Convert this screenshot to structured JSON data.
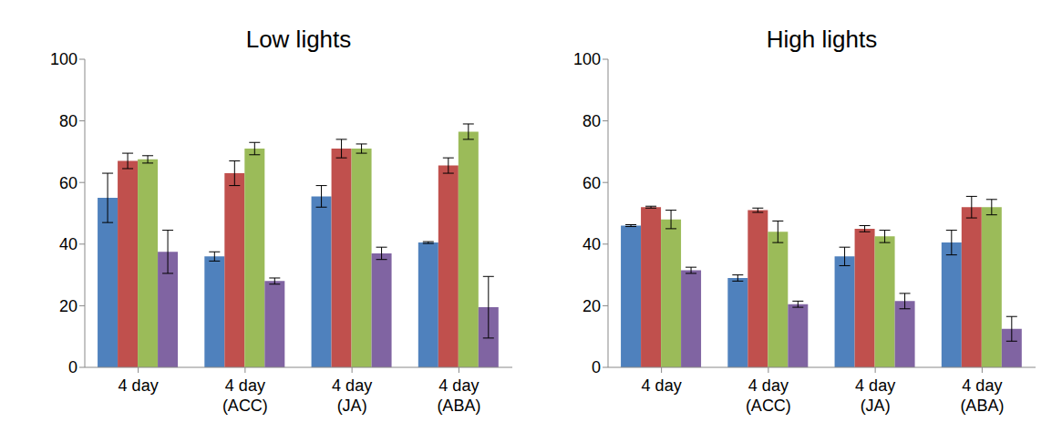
{
  "chart_data": [
    {
      "type": "bar",
      "title": "Low lights",
      "categories": [
        "4 day",
        "4 day (ACC)",
        "4 day (JA)",
        "4 day (ABA)"
      ],
      "series": [
        {
          "color": "#4F81BD",
          "values": [
            55,
            36,
            55.5,
            40.5
          ],
          "errors": [
            8,
            1.5,
            3.5,
            0.3
          ]
        },
        {
          "color": "#C0504D",
          "values": [
            67,
            63,
            71,
            65.5
          ],
          "errors": [
            2.5,
            4,
            3,
            2.5
          ]
        },
        {
          "color": "#9BBB59",
          "values": [
            67.5,
            71,
            71,
            76.5
          ],
          "errors": [
            1.2,
            2,
            1.5,
            2.5
          ]
        },
        {
          "color": "#8064A2",
          "values": [
            37.5,
            28,
            37,
            19.5
          ],
          "errors": [
            7,
            1,
            2,
            10
          ]
        }
      ],
      "ylim": [
        0,
        100
      ],
      "yticks": [
        0,
        20,
        40,
        60,
        80,
        100
      ],
      "grid": false
    },
    {
      "type": "bar",
      "title": "High lights",
      "categories": [
        "4 day",
        "4 day (ACC)",
        "4 day (JA)",
        "4 day (ABA)"
      ],
      "series": [
        {
          "color": "#4F81BD",
          "values": [
            46,
            29,
            36,
            40.5
          ],
          "errors": [
            0.3,
            1,
            3,
            4
          ]
        },
        {
          "color": "#C0504D",
          "values": [
            52,
            51,
            45,
            52
          ],
          "errors": [
            0.3,
            0.7,
            1,
            3.5
          ]
        },
        {
          "color": "#9BBB59",
          "values": [
            48,
            44,
            42.5,
            52
          ],
          "errors": [
            3,
            3.5,
            2,
            2.5
          ]
        },
        {
          "color": "#8064A2",
          "values": [
            31.5,
            20.5,
            21.5,
            12.5
          ],
          "errors": [
            1,
            1,
            2.5,
            4
          ]
        }
      ],
      "ylim": [
        0,
        100
      ],
      "yticks": [
        0,
        20,
        40,
        60,
        80,
        100
      ],
      "grid": false
    }
  ]
}
